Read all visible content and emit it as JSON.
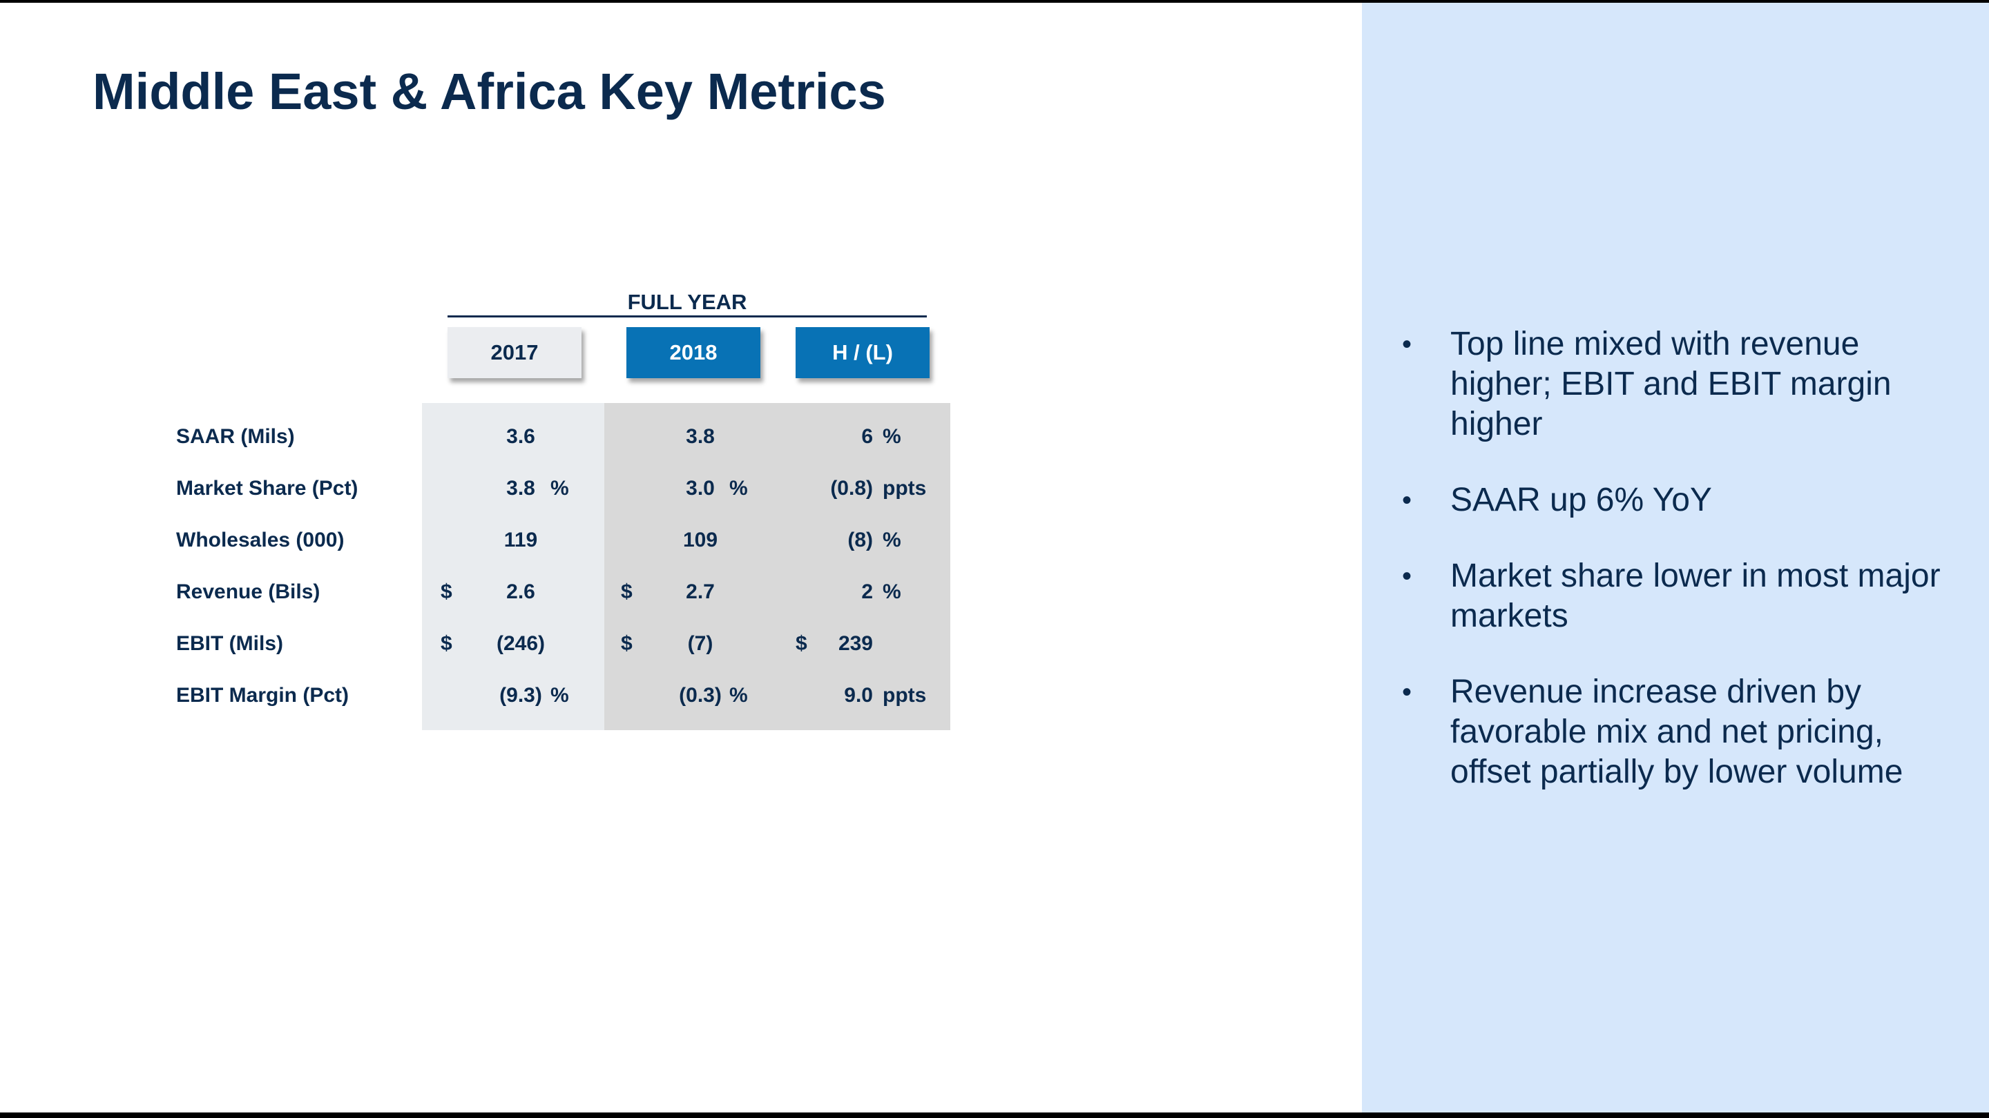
{
  "title": "Middle East & Africa Key Metrics",
  "table": {
    "group_header": "FULL YEAR",
    "columns": [
      "2017",
      "2018",
      "H / (L)"
    ],
    "rows": [
      {
        "label": "SAAR (Mils)",
        "d1": "",
        "v1": "3.6",
        "u1": "",
        "d2": "",
        "v2": "3.8",
        "u2": "",
        "d3": "",
        "v3": "6",
        "u3": "%"
      },
      {
        "label": "Market Share (Pct)",
        "d1": "",
        "v1": "3.8",
        "u1": "%",
        "d2": "",
        "v2": "3.0",
        "u2": "%",
        "d3": "",
        "v3": "(0.8)",
        "u3": "ppts"
      },
      {
        "label": "Wholesales (000)",
        "d1": "",
        "v1": "119",
        "u1": "",
        "d2": "",
        "v2": "109",
        "u2": "",
        "d3": "",
        "v3": "(8)",
        "u3": "%"
      },
      {
        "label": "Revenue (Bils)",
        "d1": "$",
        "v1": "2.6",
        "u1": "",
        "d2": "$",
        "v2": "2.7",
        "u2": "",
        "d3": "",
        "v3": "2",
        "u3": "%"
      },
      {
        "label": "EBIT (Mils)",
        "d1": "$",
        "v1": "(246)",
        "u1": "",
        "d2": "$",
        "v2": "(7)",
        "u2": "",
        "d3": "$",
        "v3": "239",
        "u3": ""
      },
      {
        "label": "EBIT Margin (Pct)",
        "d1": "",
        "v1": "(9.3)",
        "u1": "%",
        "d2": "",
        "v2": "(0.3)",
        "u2": "%",
        "d3": "",
        "v3": "9.0",
        "u3": "ppts"
      }
    ]
  },
  "bullet_symbol": "•",
  "bullets": [
    "Top line mixed with revenue higher; EBIT and EBIT margin higher",
    "SAAR up 6% YoY",
    "Market share lower in most major markets",
    "Revenue increase driven by favorable mix and net pricing, offset partially by lower volume"
  ]
}
